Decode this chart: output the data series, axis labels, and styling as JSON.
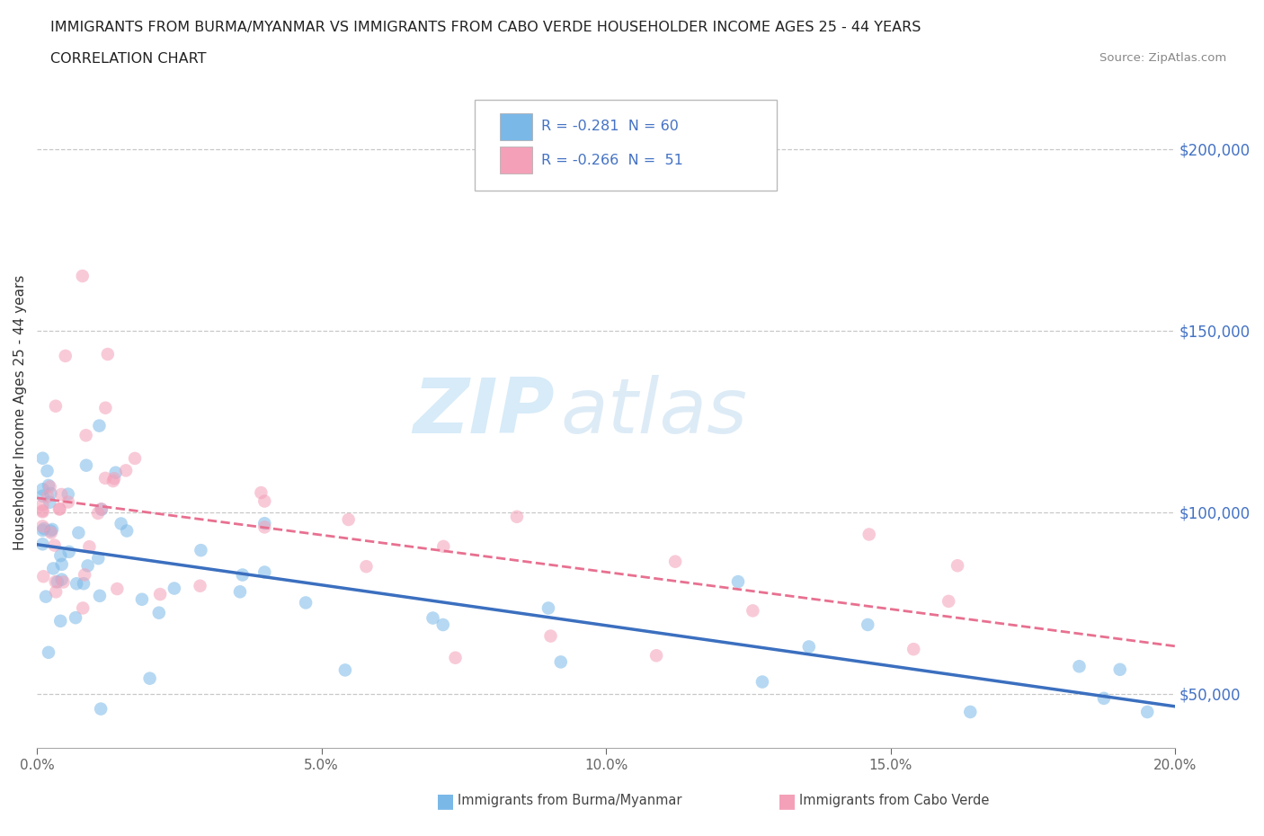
{
  "title_line1": "IMMIGRANTS FROM BURMA/MYANMAR VS IMMIGRANTS FROM CABO VERDE HOUSEHOLDER INCOME AGES 25 - 44 YEARS",
  "title_line2": "CORRELATION CHART",
  "source": "Source: ZipAtlas.com",
  "ylabel": "Householder Income Ages 25 - 44 years",
  "xlim": [
    0.0,
    0.2
  ],
  "ylim": [
    35000,
    220000
  ],
  "yticks": [
    50000,
    100000,
    150000,
    200000
  ],
  "ytick_labels": [
    "$50,000",
    "$100,000",
    "$150,000",
    "$200,000"
  ],
  "xticks": [
    0.0,
    0.05,
    0.1,
    0.15,
    0.2
  ],
  "xtick_labels": [
    "0.0%",
    "5.0%",
    "10.0%",
    "15.0%",
    "20.0%"
  ],
  "grid_color": "#c8c8c8",
  "background_color": "#ffffff",
  "watermark_zip": "ZIP",
  "watermark_atlas": "atlas",
  "legend_text1": "R = -0.281  N = 60",
  "legend_text2": "R = -0.266  N =  51",
  "color_burma": "#7ab8e8",
  "color_cabo": "#f4a0b8",
  "trendline_color_burma": "#3b6fbf",
  "trendline_color_cabo": "#e87090",
  "tick_color": "#4472c4",
  "bottom_label1": "Immigrants from Burma/Myanmar",
  "bottom_label2": "Immigrants from Cabo Verde"
}
